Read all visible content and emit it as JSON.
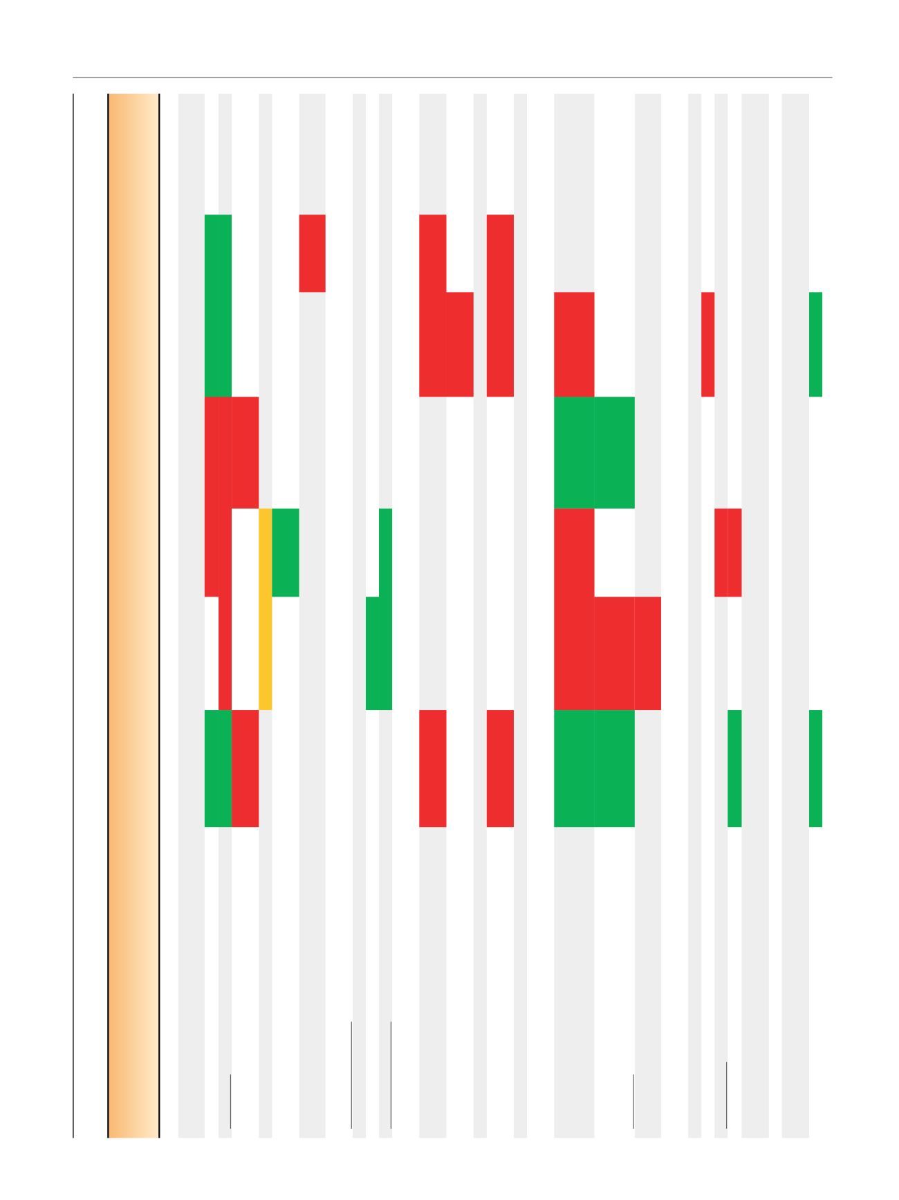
{
  "chart_data": {
    "type": "heatmap",
    "orientation": "rotated-table",
    "column_count": 30,
    "row_count": 8,
    "shaded_columns": [
      0,
      2,
      4,
      6,
      8,
      10,
      12,
      14,
      16,
      18,
      20,
      22,
      24,
      26,
      28
    ],
    "colors": {
      "green": "#0bb155",
      "red": "#ee2e2e",
      "yellow": "#fdc62c",
      "shade": "#eeeeee",
      "rule": "#808080",
      "header_gradient_start": "#f9b872",
      "header_gradient_end": "#ffebc9"
    },
    "cells": [
      {
        "col": 1,
        "row_start": 1,
        "row_end": 2,
        "value": "green"
      },
      {
        "col": 2,
        "row_start": 1,
        "row_end": 2,
        "value": "green"
      },
      {
        "col": 6,
        "row_start": 1,
        "row_end": 1,
        "value": "red"
      },
      {
        "col": 12,
        "row_start": 1,
        "row_end": 2,
        "value": "red"
      },
      {
        "col": 13,
        "row_start": 2,
        "row_end": 2,
        "value": "red"
      },
      {
        "col": 15,
        "row_start": 1,
        "row_end": 2,
        "value": "red"
      },
      {
        "col": 18,
        "row_start": 2,
        "row_end": 2,
        "value": "red"
      },
      {
        "col": 23,
        "row_start": 2,
        "row_end": 2,
        "value": "red"
      },
      {
        "col": 29,
        "row_start": 2,
        "row_end": 2,
        "value": "green"
      },
      {
        "col": 1,
        "row_start": 3,
        "row_end": 4,
        "value": "red"
      },
      {
        "col": 2,
        "row_start": 3,
        "row_end": 5,
        "value": "red"
      },
      {
        "col": 3,
        "row_start": 3,
        "row_end": 3,
        "value": "red"
      },
      {
        "col": 18,
        "row_start": 3,
        "row_end": 3,
        "value": "green"
      },
      {
        "col": 19,
        "row_start": 3,
        "row_end": 3,
        "value": "green"
      },
      {
        "col": 4,
        "row_start": 4,
        "row_end": 5,
        "value": "yellow"
      },
      {
        "col": 5,
        "row_start": 4,
        "row_end": 4,
        "value": "green"
      },
      {
        "col": 10,
        "row_start": 4,
        "row_end": 5,
        "value": "green"
      },
      {
        "col": 9,
        "row_start": 5,
        "row_end": 5,
        "value": "green"
      },
      {
        "col": 18,
        "row_start": 4,
        "row_end": 5,
        "value": "red"
      },
      {
        "col": 19,
        "row_start": 5,
        "row_end": 5,
        "value": "red"
      },
      {
        "col": 20,
        "row_start": 5,
        "row_end": 5,
        "value": "red"
      },
      {
        "col": 24,
        "row_start": 4,
        "row_end": 4,
        "value": "red"
      },
      {
        "col": 25,
        "row_start": 4,
        "row_end": 4,
        "value": "red"
      },
      {
        "col": 1,
        "row_start": 6,
        "row_end": 6,
        "value": "green"
      },
      {
        "col": 2,
        "row_start": 6,
        "row_end": 6,
        "value": "green"
      },
      {
        "col": 3,
        "row_start": 6,
        "row_end": 6,
        "value": "red"
      },
      {
        "col": 12,
        "row_start": 6,
        "row_end": 6,
        "value": "red"
      },
      {
        "col": 15,
        "row_start": 6,
        "row_end": 6,
        "value": "red"
      },
      {
        "col": 18,
        "row_start": 6,
        "row_end": 6,
        "value": "green"
      },
      {
        "col": 19,
        "row_start": 6,
        "row_end": 6,
        "value": "green"
      },
      {
        "col": 25,
        "row_start": 6,
        "row_end": 6,
        "value": "green"
      },
      {
        "col": 29,
        "row_start": 6,
        "row_end": 6,
        "value": "green"
      }
    ],
    "marker_lines": [
      {
        "col": 2,
        "kind": "short"
      },
      {
        "col": 7,
        "kind": "long"
      },
      {
        "col": 10,
        "kind": "long"
      },
      {
        "col": 19,
        "kind": "short"
      },
      {
        "col": 24,
        "kind": "medium"
      }
    ]
  }
}
